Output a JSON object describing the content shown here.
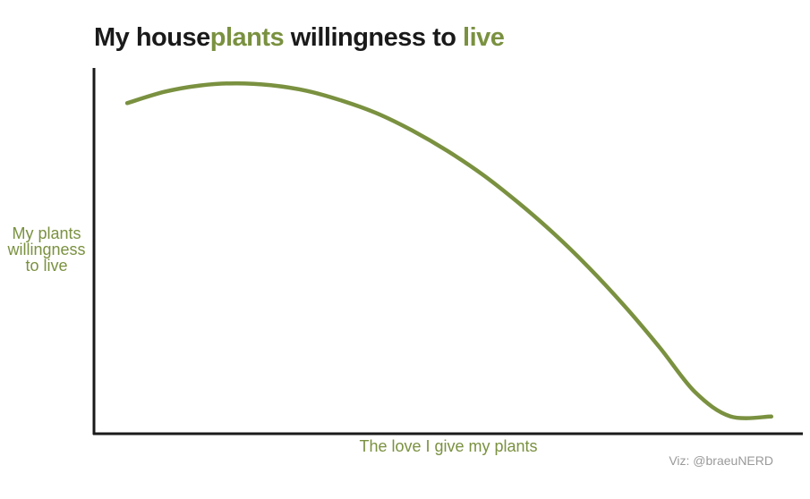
{
  "title": {
    "part1": "My house",
    "part2": "plants",
    "part3": " willingness to ",
    "part4": "live"
  },
  "colors": {
    "accent": "#7a9140",
    "text": "#1a1a1a",
    "axis": "#1a1a1a",
    "credit": "#9a9a9a"
  },
  "credit": "Viz: @braeuNERD",
  "chart_data": {
    "type": "line",
    "title": "My houseplants willingness to live",
    "xlabel": "The love I give my plants",
    "ylabel_lines": [
      "My plants",
      "willingness",
      "to live"
    ],
    "xlim": [
      0,
      1
    ],
    "ylim": [
      0,
      1
    ],
    "grid": false,
    "x_ticks_shown": false,
    "y_ticks_shown": false,
    "series": [
      {
        "color": "#7a9140",
        "x": [
          0.047,
          0.1,
          0.15,
          0.2,
          0.25,
          0.3,
          0.35,
          0.4,
          0.45,
          0.5,
          0.55,
          0.6,
          0.65,
          0.7,
          0.75,
          0.8,
          0.85,
          0.9,
          0.95,
          0.99
        ],
        "y": [
          0.904,
          0.935,
          0.952,
          0.958,
          0.953,
          0.938,
          0.911,
          0.876,
          0.829,
          0.773,
          0.708,
          0.632,
          0.548,
          0.454,
          0.35,
          0.236,
          0.114,
          0.0475,
          0.047,
          0.047
        ]
      }
    ]
  }
}
